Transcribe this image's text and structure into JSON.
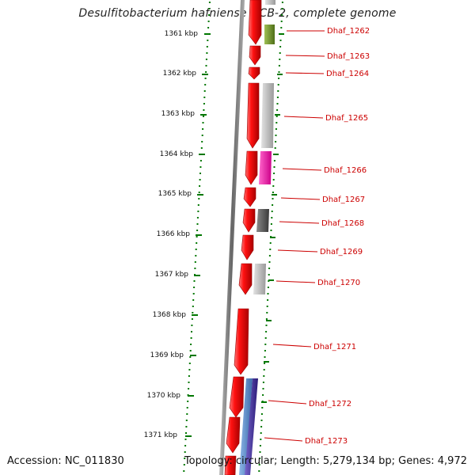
{
  "title": "Desulfitobacterium hafniense DCB-2, complete genome",
  "accession": "Accession: NC_011830",
  "topology": "Topology: circular; Length: 5,279,134 bp; Genes: 4,972",
  "scale_ticks": [
    "1361 kbp",
    "1362 kbp",
    "1363 kbp",
    "1364 kbp",
    "1365 kbp",
    "1366 kbp",
    "1367 kbp",
    "1368 kbp",
    "1369 kbp",
    "1370 kbp",
    "1371 kbp"
  ],
  "genes": [
    "Dhaf_1262",
    "Dhaf_1263",
    "Dhaf_1264",
    "Dhaf_1265",
    "Dhaf_1266",
    "Dhaf_1267",
    "Dhaf_1268",
    "Dhaf_1269",
    "Dhaf_1270",
    "Dhaf_1271",
    "Dhaf_1272",
    "Dhaf_1273"
  ],
  "colors": {
    "cds": "#ee0000",
    "tick": "#007700",
    "label": "#cc0000",
    "backbone": "#888888",
    "olive": "#6b8e23",
    "magenta": "#ee1199",
    "light_gray": "#bbbbbb",
    "dark_gray": "#555555",
    "blue": "#5a8fd0",
    "navy": "#443399"
  }
}
